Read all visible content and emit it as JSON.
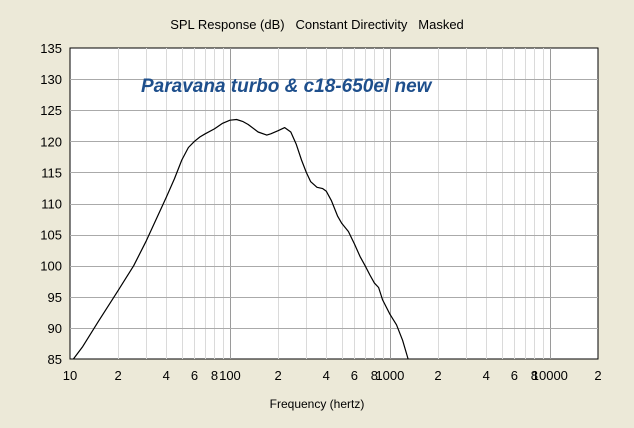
{
  "chart_data": {
    "type": "line",
    "title": "SPL Response (dB)   Constant Directivity   Masked",
    "xlabel": "Frequency (hertz)",
    "ylabel": "",
    "x_scale": "log",
    "xlim": [
      10,
      20000
    ],
    "ylim": [
      85,
      135
    ],
    "grid": true,
    "annotation": "Paravana turbo & c18-650el new",
    "y_ticks": [
      85,
      90,
      95,
      100,
      105,
      110,
      115,
      120,
      125,
      130,
      135
    ],
    "x_ticks": [
      {
        "value": 10,
        "label": "10"
      },
      {
        "value": 20,
        "label": "2"
      },
      {
        "value": 40,
        "label": "4"
      },
      {
        "value": 60,
        "label": "6"
      },
      {
        "value": 80,
        "label": "8"
      },
      {
        "value": 100,
        "label": "100"
      },
      {
        "value": 200,
        "label": "2"
      },
      {
        "value": 400,
        "label": "4"
      },
      {
        "value": 600,
        "label": "6"
      },
      {
        "value": 800,
        "label": "8"
      },
      {
        "value": 1000,
        "label": "1000"
      },
      {
        "value": 2000,
        "label": "2"
      },
      {
        "value": 4000,
        "label": "4"
      },
      {
        "value": 6000,
        "label": "6"
      },
      {
        "value": 8000,
        "label": "8"
      },
      {
        "value": 10000,
        "label": "10000"
      },
      {
        "value": 20000,
        "label": "2"
      }
    ],
    "series": [
      {
        "color": "#000000",
        "x": [
          10.5,
          12,
          15,
          20,
          25,
          30,
          40,
          45,
          50,
          55,
          60,
          65,
          70,
          80,
          90,
          100,
          110,
          120,
          130,
          150,
          170,
          180,
          200,
          220,
          240,
          260,
          280,
          300,
          320,
          350,
          380,
          400,
          430,
          470,
          500,
          550,
          600,
          650,
          700,
          750,
          800,
          850,
          900,
          1000,
          1100,
          1200,
          1300
        ],
        "y": [
          85,
          87,
          91,
          96,
          100,
          104,
          111,
          114,
          117,
          119,
          120,
          120.7,
          121.2,
          122,
          122.9,
          123.4,
          123.5,
          123.2,
          122.7,
          121.5,
          121,
          121.2,
          121.7,
          122.2,
          121.5,
          119.5,
          117,
          115,
          113.5,
          112.6,
          112.4,
          112,
          110.5,
          108,
          106.8,
          105.5,
          103.5,
          101.5,
          100,
          98.5,
          97.2,
          96.5,
          94.5,
          92.2,
          90.5,
          88,
          85
        ]
      }
    ]
  }
}
